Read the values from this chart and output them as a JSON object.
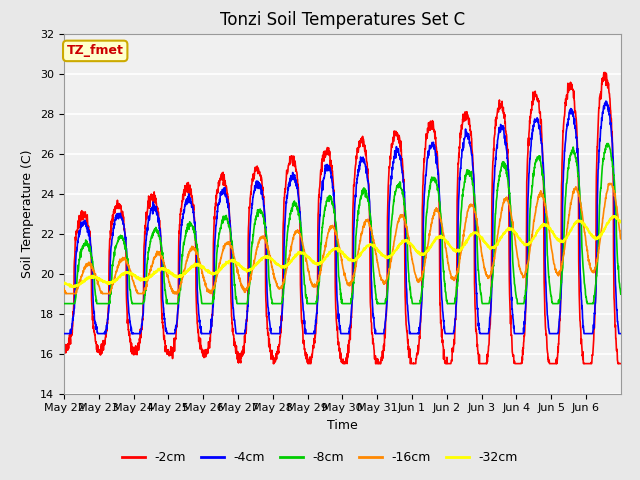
{
  "title": "Tonzi Soil Temperatures Set C",
  "xlabel": "Time",
  "ylabel": "Soil Temperature (C)",
  "ylim": [
    14,
    32
  ],
  "annotation_text": "TZ_fmet",
  "annotation_color": "#cc0000",
  "annotation_bg": "#ffffcc",
  "annotation_border": "#ccaa00",
  "series_colors": [
    "#ff0000",
    "#0000ff",
    "#00cc00",
    "#ff8800",
    "#ffff00"
  ],
  "series_labels": [
    "-2cm",
    "-4cm",
    "-8cm",
    "-16cm",
    "-32cm"
  ],
  "background_color": "#e8e8e8",
  "plot_bg_color": "#f0f0f0",
  "grid_color": "#ffffff",
  "x_tick_labels": [
    "May 22",
    "May 23",
    "May 24",
    "May 25",
    "May 26",
    "May 27",
    "May 28",
    "May 29",
    "May 30",
    "May 31",
    "Jun 1",
    "Jun 2",
    "Jun 3",
    "Jun 4",
    "Jun 5",
    "Jun 6"
  ],
  "n_days": 16,
  "title_fontsize": 12,
  "axis_fontsize": 9,
  "tick_fontsize": 8
}
